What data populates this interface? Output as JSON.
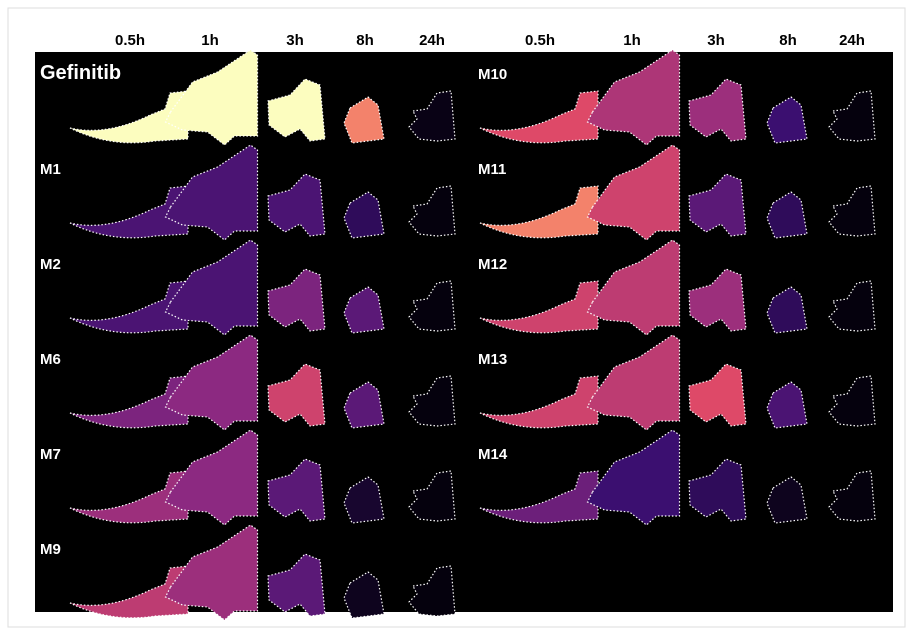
{
  "columns_left": [
    "0.5h",
    "1h",
    "3h",
    "8h",
    "24h"
  ],
  "columns_right": [
    "0.5h",
    "1h",
    "3h",
    "8h",
    "24h"
  ],
  "rows_left": [
    "Gefinitib",
    "M1",
    "M2",
    "M6",
    "M7",
    "M9"
  ],
  "rows_right": [
    "M10",
    "M11",
    "M12",
    "M13",
    "M14"
  ]
}
